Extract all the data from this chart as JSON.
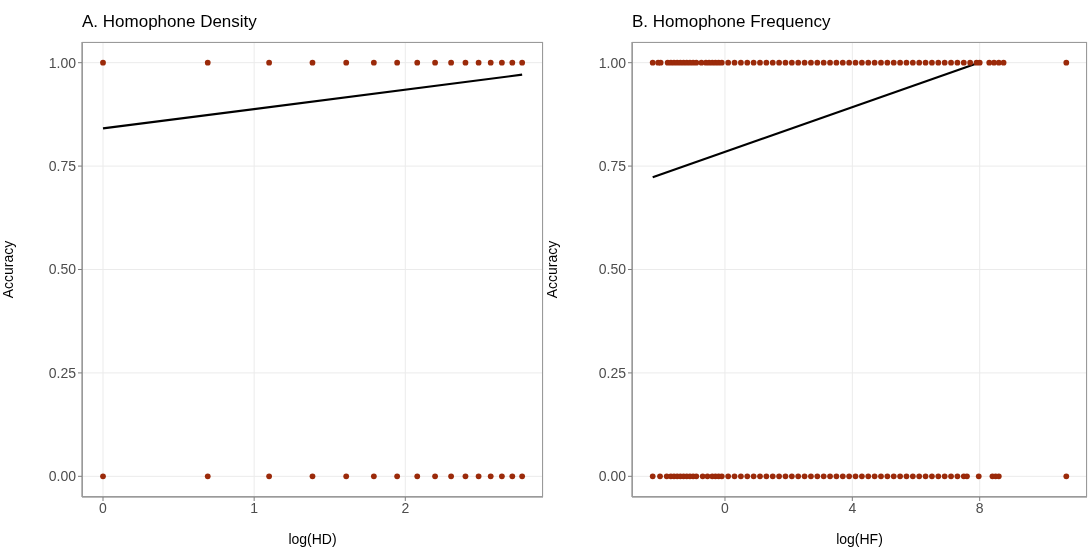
{
  "chart_data": [
    {
      "type": "scatter",
      "title": "A. Homophone Density",
      "xlabel": "log(HD)",
      "ylabel": "Accuracy",
      "xlim": [
        -0.139,
        2.911
      ],
      "xticks": [
        0,
        1,
        2
      ],
      "ylim": [
        -0.05,
        1.05
      ],
      "yticks": [
        {
          "value": 0,
          "label": "0.00"
        },
        {
          "value": 0.25,
          "label": "0.25"
        },
        {
          "value": 0.5,
          "label": "0.50"
        },
        {
          "value": 0.75,
          "label": "0.75"
        },
        {
          "value": 1,
          "label": "1.00"
        }
      ],
      "grid": true,
      "series": [
        {
          "marker": "circle",
          "color": "#9b2a0a",
          "x": [
            0,
            0.693,
            1.099,
            1.386,
            1.609,
            1.792,
            1.946,
            2.079,
            2.197,
            2.303,
            2.398,
            2.485,
            2.565,
            2.639,
            2.708,
            2.773,
            0,
            0.693,
            1.099,
            1.386,
            1.609,
            1.792,
            1.946,
            2.079,
            2.197,
            2.303,
            2.398,
            2.485,
            2.565,
            2.639,
            2.708,
            2.773
          ],
          "values": [
            1,
            1,
            1,
            1,
            1,
            1,
            1,
            1,
            1,
            1,
            1,
            1,
            1,
            1,
            1,
            1,
            0,
            0,
            0,
            0,
            0,
            0,
            0,
            0,
            0,
            0,
            0,
            0,
            0,
            0,
            0,
            0
          ]
        },
        {
          "type": "line",
          "marker": "none",
          "color": "#000000",
          "x": [
            0,
            2.773
          ],
          "values": [
            0.841,
            0.971
          ]
        }
      ]
    },
    {
      "type": "scatter",
      "title": "B. Homophone Frequency",
      "xlabel": "log(HF)",
      "ylabel": "Accuracy",
      "xlim": [
        -2.92,
        11.37
      ],
      "xticks": [
        0,
        4,
        8
      ],
      "ylim": [
        -0.05,
        1.05
      ],
      "yticks": [
        {
          "value": 0,
          "label": "0.00"
        },
        {
          "value": 0.25,
          "label": "0.25"
        },
        {
          "value": 0.5,
          "label": "0.50"
        },
        {
          "value": 0.75,
          "label": "0.75"
        },
        {
          "value": 1,
          "label": "1.00"
        }
      ],
      "grid": true,
      "series": [
        {
          "marker": "circle",
          "color": "#9b2a0a",
          "x": [
            -2.27,
            -2.1,
            -2.02,
            -1.8,
            -1.7,
            -1.6,
            -1.5,
            -1.4,
            -1.3,
            -1.2,
            -1.1,
            -1.0,
            -0.9,
            -0.74,
            -0.6,
            -0.5,
            -0.4,
            -0.3,
            -0.2,
            -0.1,
            0.1,
            0.3,
            0.5,
            0.7,
            0.9,
            1.1,
            1.3,
            1.5,
            1.7,
            1.9,
            2.1,
            2.3,
            2.5,
            2.7,
            2.9,
            3.1,
            3.3,
            3.5,
            3.7,
            3.9,
            4.1,
            4.3,
            4.5,
            4.7,
            4.9,
            5.1,
            5.3,
            5.5,
            5.7,
            5.9,
            6.1,
            6.3,
            6.5,
            6.7,
            6.9,
            7.1,
            7.3,
            7.5,
            7.7,
            7.9,
            8.0,
            8.3,
            8.45,
            8.6,
            8.75,
            10.72,
            -2.27,
            -2.04,
            -1.83,
            -1.7,
            -1.6,
            -1.5,
            -1.4,
            -1.3,
            -1.2,
            -1.1,
            -1.0,
            -0.9,
            -0.7,
            -0.55,
            -0.4,
            -0.3,
            -0.2,
            -0.1,
            0.1,
            0.3,
            0.5,
            0.7,
            0.9,
            1.1,
            1.3,
            1.5,
            1.7,
            1.9,
            2.1,
            2.3,
            2.5,
            2.7,
            2.9,
            3.1,
            3.3,
            3.5,
            3.7,
            3.9,
            4.1,
            4.3,
            4.5,
            4.7,
            4.9,
            5.1,
            5.3,
            5.5,
            5.7,
            5.9,
            6.1,
            6.3,
            6.5,
            6.7,
            6.9,
            7.1,
            7.3,
            7.5,
            7.6,
            7.97,
            8.4,
            8.5,
            8.6,
            10.72
          ],
          "values": [
            1,
            1,
            1,
            1,
            1,
            1,
            1,
            1,
            1,
            1,
            1,
            1,
            1,
            1,
            1,
            1,
            1,
            1,
            1,
            1,
            1,
            1,
            1,
            1,
            1,
            1,
            1,
            1,
            1,
            1,
            1,
            1,
            1,
            1,
            1,
            1,
            1,
            1,
            1,
            1,
            1,
            1,
            1,
            1,
            1,
            1,
            1,
            1,
            1,
            1,
            1,
            1,
            1,
            1,
            1,
            1,
            1,
            1,
            1,
            1,
            1,
            1,
            1,
            1,
            1,
            1,
            0,
            0,
            0,
            0,
            0,
            0,
            0,
            0,
            0,
            0,
            0,
            0,
            0,
            0,
            0,
            0,
            0,
            0,
            0,
            0,
            0,
            0,
            0,
            0,
            0,
            0,
            0,
            0,
            0,
            0,
            0,
            0,
            0,
            0,
            0,
            0,
            0,
            0,
            0,
            0,
            0,
            0,
            0,
            0,
            0,
            0,
            0,
            0,
            0,
            0,
            0,
            0,
            0,
            0,
            0,
            0,
            0,
            0,
            0,
            0,
            0,
            0
          ]
        },
        {
          "type": "line",
          "marker": "none",
          "color": "#000000",
          "x": [
            -2.27,
            7.97
          ],
          "values": [
            0.723,
            1.0
          ]
        }
      ]
    }
  ]
}
